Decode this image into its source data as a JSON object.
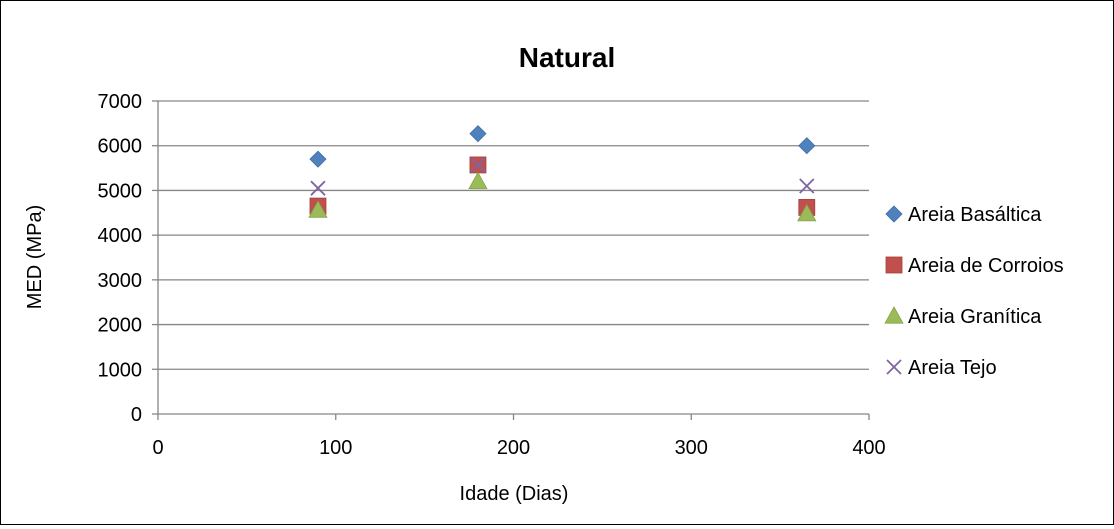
{
  "chart_data": {
    "type": "scatter",
    "title": "Natural",
    "xlabel": "Idade (Dias)",
    "ylabel": "MED (MPa)",
    "xlim": [
      0,
      400
    ],
    "ylim": [
      0,
      7000
    ],
    "x_ticks": [
      0,
      100,
      200,
      300,
      400
    ],
    "y_ticks": [
      0,
      1000,
      2000,
      3000,
      4000,
      5000,
      6000,
      7000
    ],
    "grid": "horizontal",
    "legend_position": "right",
    "series": [
      {
        "name": "Areia Basáltica",
        "marker": "diamond",
        "color": "#4F81BD",
        "x": [
          90,
          180,
          365
        ],
        "y": [
          5700,
          6270,
          6000
        ]
      },
      {
        "name": "Areia de Corroios",
        "marker": "square",
        "color": "#C0504D",
        "x": [
          90,
          180,
          365
        ],
        "y": [
          4650,
          5570,
          4620
        ]
      },
      {
        "name": "Areia Granítica",
        "marker": "triangle",
        "color": "#9BBB59",
        "x": [
          90,
          180,
          365
        ],
        "y": [
          4560,
          5200,
          4480
        ]
      },
      {
        "name": "Areia Tejo",
        "marker": "x",
        "color": "#8064A2",
        "x": [
          90,
          180,
          365
        ],
        "y": [
          5050,
          5570,
          5100
        ]
      }
    ]
  }
}
